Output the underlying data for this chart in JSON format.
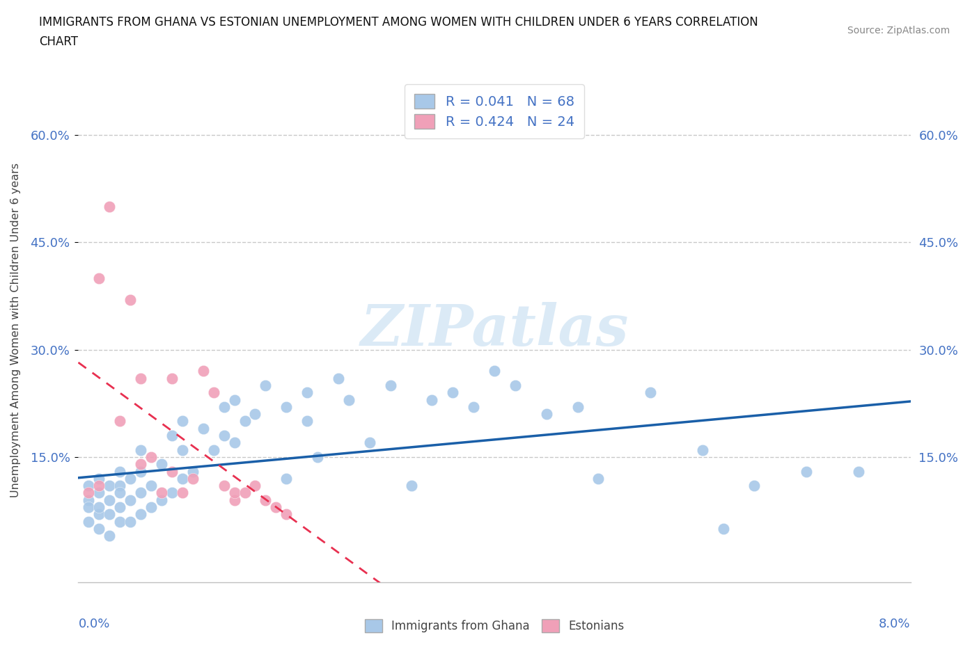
{
  "title_line1": "IMMIGRANTS FROM GHANA VS ESTONIAN UNEMPLOYMENT AMONG WOMEN WITH CHILDREN UNDER 6 YEARS CORRELATION",
  "title_line2": "CHART",
  "source": "Source: ZipAtlas.com",
  "ylabel": "Unemployment Among Women with Children Under 6 years",
  "ytick_vals": [
    0.15,
    0.3,
    0.45,
    0.6
  ],
  "ytick_labels": [
    "15.0%",
    "30.0%",
    "45.0%",
    "60.0%"
  ],
  "xlim": [
    0.0,
    0.08
  ],
  "ylim": [
    -0.025,
    0.68
  ],
  "r_ghana": "0.041",
  "n_ghana": "68",
  "r_estonian": "0.424",
  "n_estonian": "24",
  "color_ghana": "#a8c8e8",
  "color_estonian": "#f0a0b8",
  "color_ghana_line": "#1a5fa8",
  "color_estonian_line": "#e83050",
  "watermark_text": "ZIPatlas",
  "watermark_color": "#d0e4f4",
  "ghana_x": [
    0.001,
    0.001,
    0.001,
    0.001,
    0.002,
    0.002,
    0.002,
    0.002,
    0.002,
    0.003,
    0.003,
    0.003,
    0.003,
    0.004,
    0.004,
    0.004,
    0.004,
    0.004,
    0.005,
    0.005,
    0.005,
    0.006,
    0.006,
    0.006,
    0.006,
    0.007,
    0.007,
    0.008,
    0.008,
    0.009,
    0.009,
    0.01,
    0.01,
    0.01,
    0.011,
    0.012,
    0.013,
    0.014,
    0.014,
    0.015,
    0.015,
    0.016,
    0.017,
    0.018,
    0.02,
    0.02,
    0.022,
    0.022,
    0.023,
    0.025,
    0.026,
    0.028,
    0.03,
    0.032,
    0.034,
    0.036,
    0.038,
    0.04,
    0.042,
    0.045,
    0.048,
    0.05,
    0.055,
    0.06,
    0.062,
    0.065,
    0.07,
    0.075
  ],
  "ghana_y": [
    0.09,
    0.06,
    0.08,
    0.11,
    0.05,
    0.07,
    0.1,
    0.12,
    0.08,
    0.04,
    0.07,
    0.09,
    0.11,
    0.06,
    0.08,
    0.11,
    0.13,
    0.1,
    0.06,
    0.09,
    0.12,
    0.07,
    0.1,
    0.13,
    0.16,
    0.08,
    0.11,
    0.09,
    0.14,
    0.1,
    0.18,
    0.12,
    0.16,
    0.2,
    0.13,
    0.19,
    0.16,
    0.18,
    0.22,
    0.17,
    0.23,
    0.2,
    0.21,
    0.25,
    0.22,
    0.12,
    0.24,
    0.2,
    0.15,
    0.26,
    0.23,
    0.17,
    0.25,
    0.11,
    0.23,
    0.24,
    0.22,
    0.27,
    0.25,
    0.21,
    0.22,
    0.12,
    0.24,
    0.16,
    0.05,
    0.11,
    0.13,
    0.13
  ],
  "estonian_x": [
    0.001,
    0.002,
    0.002,
    0.003,
    0.004,
    0.005,
    0.006,
    0.006,
    0.007,
    0.008,
    0.009,
    0.009,
    0.01,
    0.011,
    0.012,
    0.013,
    0.014,
    0.015,
    0.015,
    0.016,
    0.017,
    0.018,
    0.019,
    0.02
  ],
  "estonian_y": [
    0.1,
    0.11,
    0.4,
    0.5,
    0.2,
    0.37,
    0.14,
    0.26,
    0.15,
    0.1,
    0.26,
    0.13,
    0.1,
    0.12,
    0.27,
    0.24,
    0.11,
    0.09,
    0.1,
    0.1,
    0.11,
    0.09,
    0.08,
    0.07
  ]
}
